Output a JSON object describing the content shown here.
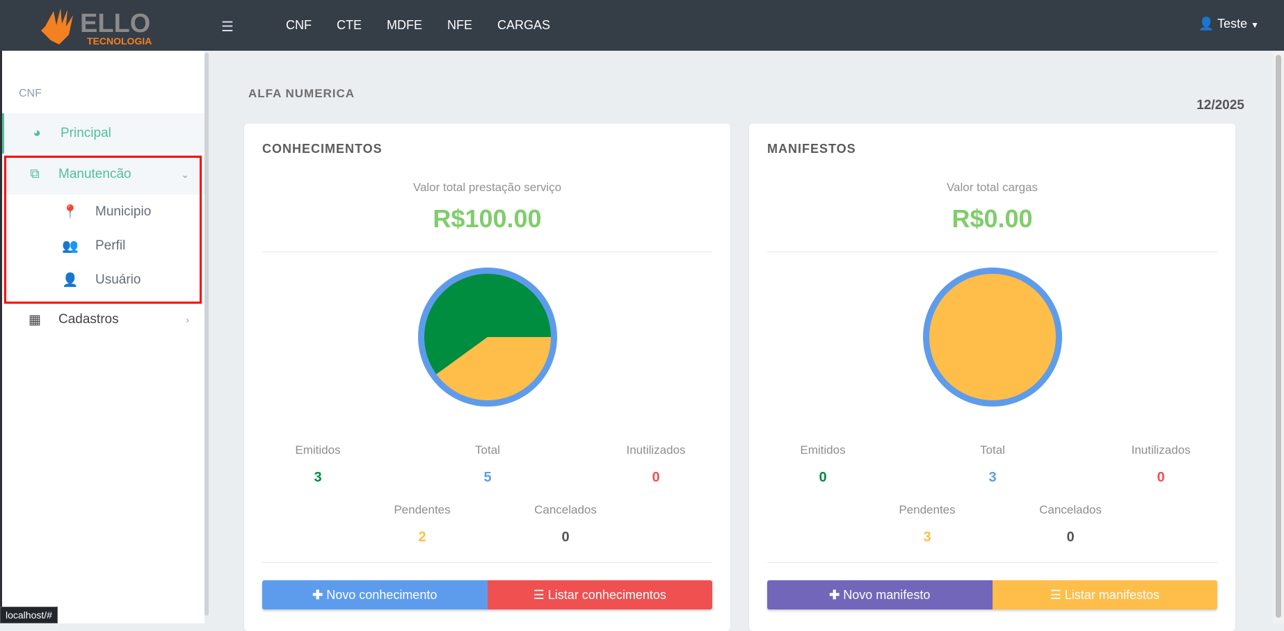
{
  "header": {
    "logo_text": "ELLO",
    "logo_sub": "TECNOLOGIA",
    "nav": [
      "CNF",
      "CTE",
      "MDFE",
      "NFE",
      "CARGAS"
    ],
    "user": "Teste"
  },
  "sidebar": {
    "section": "CNF",
    "items": [
      {
        "label": "Principal"
      },
      {
        "label": "Manutencão"
      },
      {
        "label": "Cadastros"
      }
    ],
    "subitems": [
      {
        "label": "Municipio"
      },
      {
        "label": "Perfil"
      },
      {
        "label": "Usuário"
      }
    ]
  },
  "main": {
    "company": "ALFA NUMERICA",
    "period": "12/2025"
  },
  "cards": [
    {
      "title": "CONHECIMENTOS",
      "value_label": "Valor total prestação serviço",
      "value": "R$100.00",
      "stats": {
        "emitidos_label": "Emitidos",
        "emitidos": "3",
        "total_label": "Total",
        "total": "5",
        "inutilizados_label": "Inutilizados",
        "inutilizados": "0",
        "pendentes_label": "Pendentes",
        "pendentes": "2",
        "cancelados_label": "Cancelados",
        "cancelados": "0"
      },
      "btn_new": "Novo conhecimento",
      "btn_list": "Listar conhecimentos"
    },
    {
      "title": "MANIFESTOS",
      "value_label": "Valor total cargas",
      "value": "R$0.00",
      "stats": {
        "emitidos_label": "Emitidos",
        "emitidos": "0",
        "total_label": "Total",
        "total": "3",
        "inutilizados_label": "Inutilizados",
        "inutilizados": "0",
        "pendentes_label": "Pendentes",
        "pendentes": "3",
        "cancelados_label": "Cancelados",
        "cancelados": "0"
      },
      "btn_new": "Novo manifesto",
      "btn_list": "Listar manifestos"
    }
  ],
  "chart_data": [
    {
      "type": "pie",
      "title": "CONHECIMENTOS",
      "categories": [
        "Emitidos",
        "Pendentes"
      ],
      "values": [
        3,
        2
      ],
      "colors": [
        "#008d40",
        "#ffbd4a"
      ]
    },
    {
      "type": "pie",
      "title": "MANIFESTOS",
      "categories": [
        "Emitidos",
        "Pendentes"
      ],
      "values": [
        0,
        3
      ],
      "colors": [
        "#008d40",
        "#ffbd4a"
      ]
    }
  ],
  "status_tooltip": "localhost/#"
}
